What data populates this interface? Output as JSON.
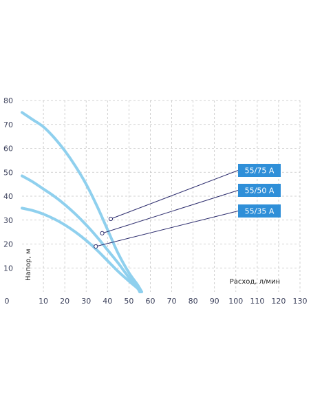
{
  "chart_data": {
    "type": "line",
    "xlabel": "Расход, л/мин",
    "ylabel": "Напор, м",
    "xlim": [
      0,
      130
    ],
    "ylim": [
      0,
      80
    ],
    "x_ticks": [
      "0",
      "10",
      "20",
      "30",
      "40",
      "50",
      "60",
      "70",
      "80",
      "90",
      "100",
      "110",
      "120",
      "130"
    ],
    "y_ticks": [
      "10",
      "20",
      "30",
      "40",
      "50",
      "60",
      "70",
      "80"
    ],
    "grid": true,
    "colors": {
      "curve": "#8fd0ee",
      "label_box": "#2f8fd8",
      "leader": "#2d2d6e",
      "grid": "#c4c4c4"
    },
    "series": [
      {
        "name": "55/75 A",
        "x": [
          0,
          5,
          10,
          15,
          20,
          25,
          30,
          35,
          40,
          45,
          50,
          54,
          56
        ],
        "y": [
          75,
          72,
          69,
          64.5,
          59,
          52.5,
          45,
          36,
          26,
          16,
          8,
          3,
          0
        ]
      },
      {
        "name": "55/50 A",
        "x": [
          0,
          5,
          10,
          15,
          20,
          25,
          30,
          35,
          40,
          45,
          50,
          54,
          55.5
        ],
        "y": [
          48.5,
          46,
          43,
          40,
          36.5,
          32.5,
          28,
          23,
          17.5,
          12,
          6,
          2,
          0
        ]
      },
      {
        "name": "55/35 A",
        "x": [
          0,
          5,
          10,
          15,
          20,
          25,
          30,
          35,
          40,
          45,
          50,
          54,
          55
        ],
        "y": [
          35,
          34,
          32.5,
          30.5,
          28,
          25,
          21.5,
          17.5,
          13,
          8.5,
          4.5,
          1.5,
          0
        ]
      }
    ],
    "label_points": [
      {
        "series": "55/75 A",
        "x": 41.5,
        "y": 30.5
      },
      {
        "series": "55/50 A",
        "x": 37.5,
        "y": 24.5
      },
      {
        "series": "55/35 A",
        "x": 34.5,
        "y": 19
      }
    ]
  }
}
